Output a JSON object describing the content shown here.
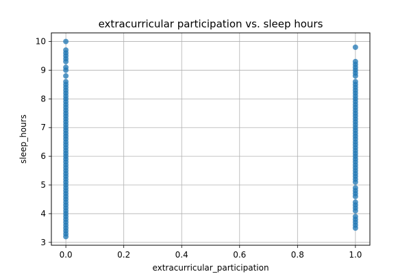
{
  "chart_data": {
    "type": "scatter",
    "title": "extracurricular participation vs. sleep hours",
    "xlabel": "extracurricular_participation",
    "ylabel": "sleep_hours",
    "xlim": [
      -0.05,
      1.05
    ],
    "ylim": [
      2.9,
      10.3
    ],
    "xticks": [
      0.0,
      0.2,
      0.4,
      0.6,
      0.8,
      1.0
    ],
    "xtick_labels": [
      "0.0",
      "0.2",
      "0.4",
      "0.6",
      "0.8",
      "1.0"
    ],
    "yticks": [
      3,
      4,
      5,
      6,
      7,
      8,
      9,
      10
    ],
    "ytick_labels": [
      "3",
      "4",
      "5",
      "6",
      "7",
      "8",
      "9",
      "10"
    ],
    "grid": true,
    "point_color": "#1f77b4",
    "series": [
      {
        "values": [
          {
            "x": 0,
            "y": 10.0
          },
          {
            "x": 0,
            "y": 9.7
          },
          {
            "x": 0,
            "y": 9.6
          },
          {
            "x": 0,
            "y": 9.5
          },
          {
            "x": 0,
            "y": 9.4
          },
          {
            "x": 0,
            "y": 9.3
          },
          {
            "x": 0,
            "y": 9.1
          },
          {
            "x": 0,
            "y": 9.0
          },
          {
            "x": 0,
            "y": 8.8
          },
          {
            "x": 0,
            "y": 8.6
          },
          {
            "x": 0,
            "y": 8.5
          },
          {
            "x": 0,
            "y": 8.4
          },
          {
            "x": 0,
            "y": 8.3
          },
          {
            "x": 0,
            "y": 8.2
          },
          {
            "x": 0,
            "y": 8.1
          },
          {
            "x": 0,
            "y": 8.0
          },
          {
            "x": 0,
            "y": 7.9
          },
          {
            "x": 0,
            "y": 7.8
          },
          {
            "x": 0,
            "y": 7.7
          },
          {
            "x": 0,
            "y": 7.6
          },
          {
            "x": 0,
            "y": 7.5
          },
          {
            "x": 0,
            "y": 7.4
          },
          {
            "x": 0,
            "y": 7.3
          },
          {
            "x": 0,
            "y": 7.2
          },
          {
            "x": 0,
            "y": 7.1
          },
          {
            "x": 0,
            "y": 7.0
          },
          {
            "x": 0,
            "y": 6.9
          },
          {
            "x": 0,
            "y": 6.8
          },
          {
            "x": 0,
            "y": 6.7
          },
          {
            "x": 0,
            "y": 6.6
          },
          {
            "x": 0,
            "y": 6.5
          },
          {
            "x": 0,
            "y": 6.4
          },
          {
            "x": 0,
            "y": 6.3
          },
          {
            "x": 0,
            "y": 6.2
          },
          {
            "x": 0,
            "y": 6.1
          },
          {
            "x": 0,
            "y": 6.0
          },
          {
            "x": 0,
            "y": 5.9
          },
          {
            "x": 0,
            "y": 5.8
          },
          {
            "x": 0,
            "y": 5.7
          },
          {
            "x": 0,
            "y": 5.6
          },
          {
            "x": 0,
            "y": 5.5
          },
          {
            "x": 0,
            "y": 5.4
          },
          {
            "x": 0,
            "y": 5.3
          },
          {
            "x": 0,
            "y": 5.2
          },
          {
            "x": 0,
            "y": 5.1
          },
          {
            "x": 0,
            "y": 5.0
          },
          {
            "x": 0,
            "y": 4.9
          },
          {
            "x": 0,
            "y": 4.8
          },
          {
            "x": 0,
            "y": 4.7
          },
          {
            "x": 0,
            "y": 4.6
          },
          {
            "x": 0,
            "y": 4.5
          },
          {
            "x": 0,
            "y": 4.4
          },
          {
            "x": 0,
            "y": 4.3
          },
          {
            "x": 0,
            "y": 4.2
          },
          {
            "x": 0,
            "y": 4.1
          },
          {
            "x": 0,
            "y": 4.0
          },
          {
            "x": 0,
            "y": 3.9
          },
          {
            "x": 0,
            "y": 3.8
          },
          {
            "x": 0,
            "y": 3.7
          },
          {
            "x": 0,
            "y": 3.6
          },
          {
            "x": 0,
            "y": 3.5
          },
          {
            "x": 0,
            "y": 3.4
          },
          {
            "x": 0,
            "y": 3.3
          },
          {
            "x": 0,
            "y": 3.2
          },
          {
            "x": 1,
            "y": 9.8
          },
          {
            "x": 1,
            "y": 9.3
          },
          {
            "x": 1,
            "y": 9.2
          },
          {
            "x": 1,
            "y": 9.1
          },
          {
            "x": 1,
            "y": 9.0
          },
          {
            "x": 1,
            "y": 8.9
          },
          {
            "x": 1,
            "y": 8.8
          },
          {
            "x": 1,
            "y": 8.6
          },
          {
            "x": 1,
            "y": 8.5
          },
          {
            "x": 1,
            "y": 8.4
          },
          {
            "x": 1,
            "y": 8.3
          },
          {
            "x": 1,
            "y": 8.2
          },
          {
            "x": 1,
            "y": 8.1
          },
          {
            "x": 1,
            "y": 8.0
          },
          {
            "x": 1,
            "y": 7.9
          },
          {
            "x": 1,
            "y": 7.8
          },
          {
            "x": 1,
            "y": 7.7
          },
          {
            "x": 1,
            "y": 7.6
          },
          {
            "x": 1,
            "y": 7.5
          },
          {
            "x": 1,
            "y": 7.4
          },
          {
            "x": 1,
            "y": 7.3
          },
          {
            "x": 1,
            "y": 7.2
          },
          {
            "x": 1,
            "y": 7.1
          },
          {
            "x": 1,
            "y": 7.0
          },
          {
            "x": 1,
            "y": 6.9
          },
          {
            "x": 1,
            "y": 6.8
          },
          {
            "x": 1,
            "y": 6.7
          },
          {
            "x": 1,
            "y": 6.6
          },
          {
            "x": 1,
            "y": 6.5
          },
          {
            "x": 1,
            "y": 6.4
          },
          {
            "x": 1,
            "y": 6.3
          },
          {
            "x": 1,
            "y": 6.2
          },
          {
            "x": 1,
            "y": 6.1
          },
          {
            "x": 1,
            "y": 6.0
          },
          {
            "x": 1,
            "y": 5.9
          },
          {
            "x": 1,
            "y": 5.8
          },
          {
            "x": 1,
            "y": 5.7
          },
          {
            "x": 1,
            "y": 5.6
          },
          {
            "x": 1,
            "y": 5.5
          },
          {
            "x": 1,
            "y": 5.4
          },
          {
            "x": 1,
            "y": 5.3
          },
          {
            "x": 1,
            "y": 5.2
          },
          {
            "x": 1,
            "y": 5.1
          },
          {
            "x": 1,
            "y": 4.9
          },
          {
            "x": 1,
            "y": 4.8
          },
          {
            "x": 1,
            "y": 4.7
          },
          {
            "x": 1,
            "y": 4.6
          },
          {
            "x": 1,
            "y": 4.4
          },
          {
            "x": 1,
            "y": 4.3
          },
          {
            "x": 1,
            "y": 4.2
          },
          {
            "x": 1,
            "y": 4.1
          },
          {
            "x": 1,
            "y": 3.9
          },
          {
            "x": 1,
            "y": 3.8
          },
          {
            "x": 1,
            "y": 3.7
          },
          {
            "x": 1,
            "y": 3.6
          },
          {
            "x": 1,
            "y": 3.5
          }
        ]
      }
    ]
  }
}
